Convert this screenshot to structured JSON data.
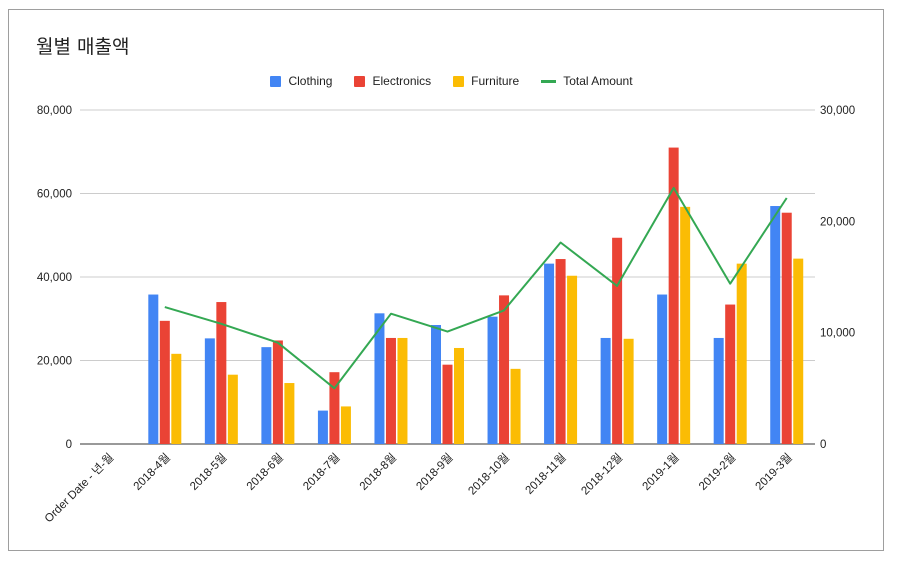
{
  "chart_data": {
    "type": "bar+line",
    "title": "월별 매출액",
    "categories": [
      "Order Date - 년-월",
      "2018-4월",
      "2018-5월",
      "2018-6월",
      "2018-7월",
      "2018-8월",
      "2018-9월",
      "2018-10월",
      "2018-11월",
      "2018-12월",
      "2019-1월",
      "2019-2월",
      "2019-3월"
    ],
    "series": [
      {
        "name": "Clothing",
        "type": "bar",
        "axis": "left",
        "color": "#4285f4",
        "values": [
          null,
          35800,
          25300,
          23200,
          8000,
          31300,
          28500,
          30500,
          43200,
          25400,
          35800,
          25400,
          57000
        ]
      },
      {
        "name": "Electronics",
        "type": "bar",
        "axis": "left",
        "color": "#ea4335",
        "values": [
          null,
          29500,
          34000,
          24800,
          17200,
          25400,
          19000,
          35600,
          44300,
          49400,
          71000,
          33400,
          55400
        ]
      },
      {
        "name": "Furniture",
        "type": "bar",
        "axis": "left",
        "color": "#fbbc04",
        "values": [
          null,
          21600,
          16600,
          14600,
          9000,
          25400,
          23000,
          18000,
          40300,
          25200,
          56800,
          43200,
          44400
        ]
      },
      {
        "name": "Total Amount",
        "type": "line",
        "axis": "right",
        "color": "#34a853",
        "values": [
          null,
          12300,
          10800,
          9100,
          5000,
          11700,
          10100,
          12000,
          18100,
          14200,
          23000,
          14400,
          22100
        ]
      }
    ],
    "y_left": {
      "min": 0,
      "max": 80000,
      "ticks": [
        "0",
        "20,000",
        "40,000",
        "60,000",
        "80,000"
      ],
      "tick_values": [
        0,
        20000,
        40000,
        60000,
        80000
      ]
    },
    "y_right": {
      "min": 0,
      "max": 30000,
      "ticks": [
        "0",
        "10,000",
        "20,000",
        "30,000"
      ],
      "tick_values": [
        0,
        10000,
        20000,
        30000
      ]
    },
    "legend_position": "top",
    "grid": true
  }
}
